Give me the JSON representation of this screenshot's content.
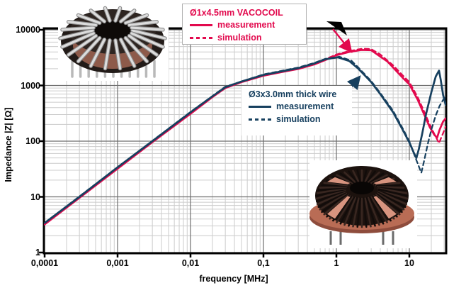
{
  "figure": {
    "x_axis_title": "frequency [MHz]",
    "y_axis_title": "Impedance |Z| [Ω]"
  },
  "colors": {
    "vacocoil": "#e2094d",
    "thick_wire": "#17405f",
    "grid_minor": "#cccccc",
    "grid_major": "#6e6e6e",
    "axis": "#000000"
  },
  "legend_vacocoil": {
    "title": "Ø1x4.5mm VACOCOIL",
    "measurement_label": "measurement",
    "simulation_label": "simulation"
  },
  "legend_thick_wire": {
    "title": "Ø3x3.0mm thick wire",
    "measurement_label": "measurement",
    "simulation_label": "simulation"
  },
  "chart_data": {
    "type": "line",
    "title": "",
    "xlabel": "frequency [MHz]",
    "ylabel": "Impedance |Z| [Ω]",
    "x_scale": "log",
    "y_scale": "log",
    "xlim": [
      0.0001,
      32
    ],
    "ylim": [
      1,
      11500
    ],
    "grid": true,
    "x_ticks": [
      {
        "value": 0.0001,
        "label": "0,0001"
      },
      {
        "value": 0.001,
        "label": "0,001"
      },
      {
        "value": 0.01,
        "label": "0,01"
      },
      {
        "value": 0.1,
        "label": "0,1"
      },
      {
        "value": 1,
        "label": "1"
      },
      {
        "value": 10,
        "label": "10"
      }
    ],
    "y_ticks": [
      {
        "value": 1,
        "label": "1"
      },
      {
        "value": 10,
        "label": "10"
      },
      {
        "value": 100,
        "label": "100"
      },
      {
        "value": 1000,
        "label": "1000"
      },
      {
        "value": 10000,
        "label": "10000"
      }
    ],
    "series": [
      {
        "name": "Ø1x4.5mm VACOCOIL measurement",
        "color": "#e2094d",
        "style": "solid",
        "points": [
          [
            0.0001,
            3.2
          ],
          [
            0.0003,
            9.6
          ],
          [
            0.001,
            32
          ],
          [
            0.003,
            96
          ],
          [
            0.01,
            310
          ],
          [
            0.02,
            620
          ],
          [
            0.03,
            900
          ],
          [
            0.05,
            1150
          ],
          [
            0.1,
            1500
          ],
          [
            0.2,
            1800
          ],
          [
            0.3,
            1980
          ],
          [
            0.5,
            2400
          ],
          [
            0.7,
            2850
          ],
          [
            1,
            3500
          ],
          [
            1.5,
            4000
          ],
          [
            2.2,
            4350
          ],
          [
            3,
            4300
          ],
          [
            4,
            3300
          ],
          [
            5,
            2700
          ],
          [
            6,
            2100
          ],
          [
            8,
            1400
          ],
          [
            10,
            1050
          ],
          [
            13,
            560
          ],
          [
            16,
            300
          ],
          [
            19,
            180
          ],
          [
            22,
            130
          ],
          [
            24,
            115
          ],
          [
            26,
            160
          ],
          [
            29,
            225
          ],
          [
            31.5,
            255
          ]
        ]
      },
      {
        "name": "Ø1x4.5mm VACOCOIL simulation",
        "color": "#e2094d",
        "style": "dashed",
        "points": [
          [
            0.0001,
            3.2
          ],
          [
            0.001,
            32
          ],
          [
            0.01,
            315
          ],
          [
            0.03,
            920
          ],
          [
            0.1,
            1530
          ],
          [
            0.3,
            2020
          ],
          [
            0.5,
            2450
          ],
          [
            0.7,
            2950
          ],
          [
            1,
            3600
          ],
          [
            1.5,
            4150
          ],
          [
            2.3,
            4600
          ],
          [
            3,
            4500
          ],
          [
            4,
            3600
          ],
          [
            6,
            2300
          ],
          [
            8,
            1550
          ],
          [
            10,
            1150
          ],
          [
            13,
            620
          ],
          [
            16,
            340
          ],
          [
            19,
            200
          ],
          [
            22,
            135
          ],
          [
            25.5,
            92
          ],
          [
            28,
            125
          ],
          [
            31.5,
            180
          ]
        ]
      },
      {
        "name": "Ø3x3.0mm thick wire measurement",
        "color": "#17405f",
        "style": "solid",
        "points": [
          [
            0.0001,
            3.4
          ],
          [
            0.0003,
            10
          ],
          [
            0.001,
            34
          ],
          [
            0.003,
            100
          ],
          [
            0.01,
            330
          ],
          [
            0.02,
            640
          ],
          [
            0.03,
            930
          ],
          [
            0.05,
            1180
          ],
          [
            0.1,
            1550
          ],
          [
            0.2,
            1850
          ],
          [
            0.3,
            2050
          ],
          [
            0.5,
            2500
          ],
          [
            0.7,
            2950
          ],
          [
            1.05,
            3200
          ],
          [
            1.5,
            2750
          ],
          [
            2,
            2000
          ],
          [
            3,
            1150
          ],
          [
            4,
            700
          ],
          [
            6,
            330
          ],
          [
            8,
            165
          ],
          [
            10,
            95
          ],
          [
            11.5,
            62
          ],
          [
            12.5,
            50
          ],
          [
            13.5,
            72
          ],
          [
            15,
            135
          ],
          [
            17,
            310
          ],
          [
            20,
            750
          ],
          [
            23,
            1450
          ],
          [
            25.5,
            1850
          ],
          [
            27,
            1250
          ],
          [
            29,
            680
          ],
          [
            31.5,
            450
          ]
        ]
      },
      {
        "name": "Ø3x3.0mm thick wire simulation",
        "color": "#17405f",
        "style": "dashed",
        "points": [
          [
            0.0001,
            3.4
          ],
          [
            0.001,
            34
          ],
          [
            0.01,
            335
          ],
          [
            0.03,
            950
          ],
          [
            0.1,
            1580
          ],
          [
            0.3,
            2100
          ],
          [
            0.5,
            2550
          ],
          [
            0.7,
            3000
          ],
          [
            1.1,
            3280
          ],
          [
            1.6,
            2800
          ],
          [
            2,
            2100
          ],
          [
            3,
            1200
          ],
          [
            4,
            730
          ],
          [
            6,
            350
          ],
          [
            8,
            175
          ],
          [
            10,
            100
          ],
          [
            12,
            52
          ],
          [
            14.6,
            27
          ],
          [
            16,
            45
          ],
          [
            18,
            92
          ],
          [
            20,
            160
          ],
          [
            23,
            290
          ],
          [
            26,
            430
          ],
          [
            29,
            550
          ],
          [
            31.5,
            620
          ]
        ]
      }
    ],
    "annotations": [
      {
        "id": "vacocoil-arrow",
        "kind": "arrow",
        "color": "#e2094d",
        "from": [
          470,
          41
        ],
        "to": [
          496,
          73
        ],
        "points_to": "Ø1x4.5mm VACOCOIL measurement"
      },
      {
        "id": "thick-wire-arrow",
        "kind": "arrow",
        "color": "#17405f",
        "from": [
          471,
          153
        ],
        "to": [
          508,
          108
        ],
        "points_to": "Ø3x3.0mm thick wire measurement"
      },
      {
        "id": "legend-callout-triangle",
        "kind": "triangle",
        "color": "#000000",
        "points": [
          [
            461,
            30
          ],
          [
            482,
            31
          ],
          [
            490,
            50
          ]
        ]
      }
    ],
    "legend_position": [
      "top-left-inside",
      "middle-inside"
    ]
  }
}
